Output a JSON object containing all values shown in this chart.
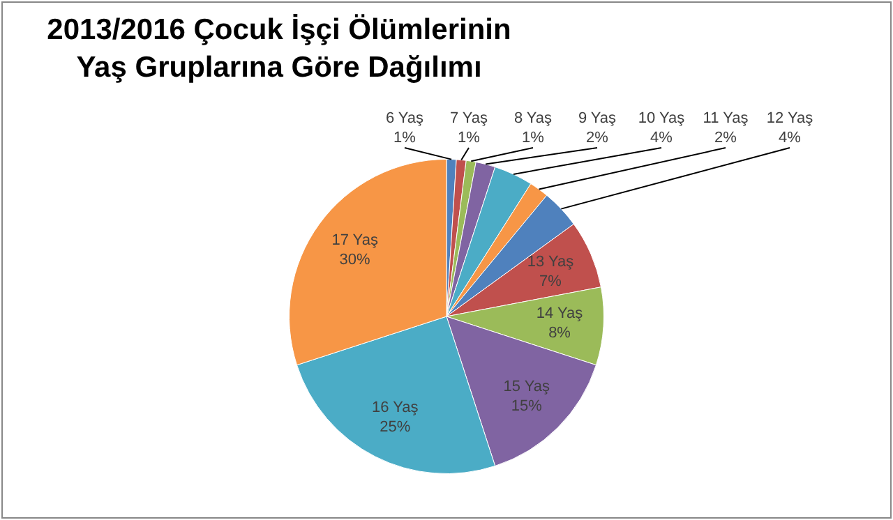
{
  "chart_data": {
    "type": "pie",
    "title": "2013/2016 Çocuk İşçi Ölümlerinin\nYaş Gruplarına Göre Dağılımı",
    "categories": [
      "6 Yaş",
      "7 Yaş",
      "8 Yaş",
      "9 Yaş",
      "10 Yaş",
      "11 Yaş",
      "12 Yaş",
      "13 Yaş",
      "14 Yaş",
      "15 Yaş",
      "16 Yaş",
      "17 Yaş"
    ],
    "values": [
      1,
      1,
      1,
      2,
      4,
      2,
      4,
      7,
      8,
      15,
      25,
      30
    ],
    "value_labels": [
      "1%",
      "1%",
      "1%",
      "2%",
      "4%",
      "2%",
      "4%",
      "7%",
      "8%",
      "15%",
      "25%",
      "30%"
    ],
    "colors": [
      "#4f81bd",
      "#c0504d",
      "#9bbb59",
      "#8064a2",
      "#4bacc6",
      "#f79646",
      "#4f81bd",
      "#c0504d",
      "#9bbb59",
      "#8064a2",
      "#4bacc6",
      "#f79646"
    ],
    "legend": false
  }
}
